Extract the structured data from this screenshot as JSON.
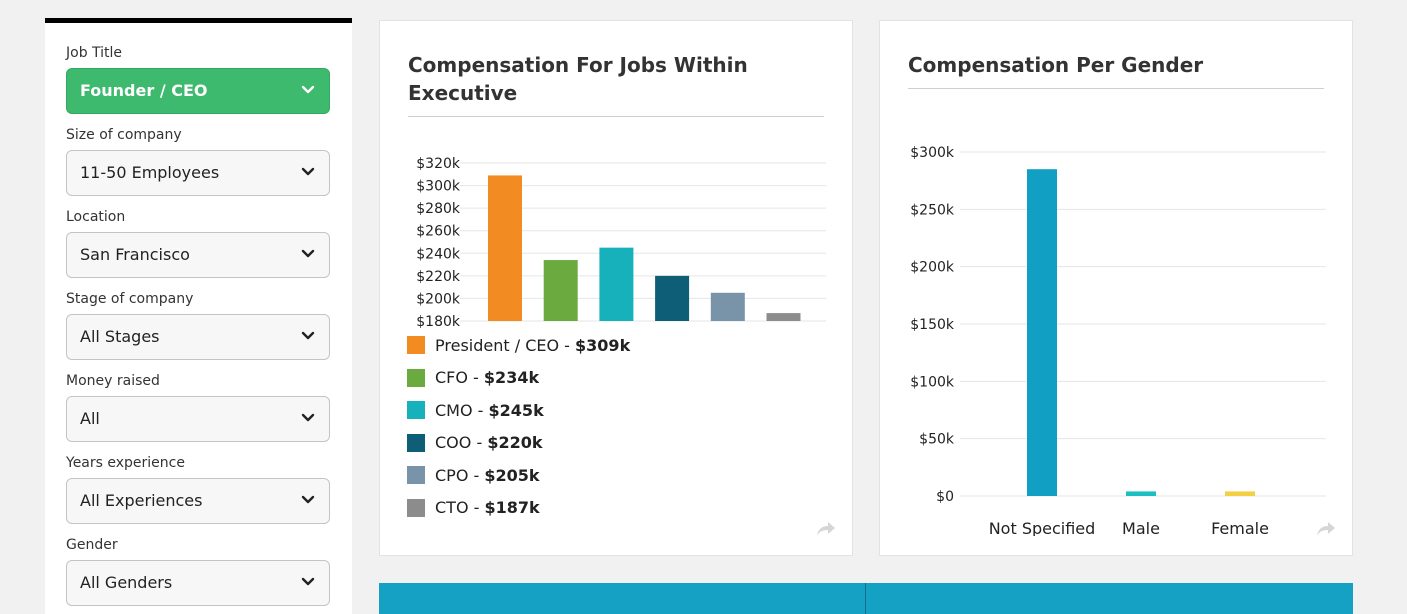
{
  "filters": [
    {
      "label": "Job Title",
      "value": "Founder / CEO",
      "active": true
    },
    {
      "label": "Size of company",
      "value": "11-50 Employees",
      "active": false
    },
    {
      "label": "Location",
      "value": "San Francisco",
      "active": false
    },
    {
      "label": "Stage of company",
      "value": "All Stages",
      "active": false
    },
    {
      "label": "Money raised",
      "value": "All",
      "active": false
    },
    {
      "label": "Years experience",
      "value": "All Experiences",
      "active": false
    },
    {
      "label": "Gender",
      "value": "All Genders",
      "active": false
    }
  ],
  "jobs_card": {
    "title_line1": "Compensation For Jobs Within",
    "title_line2": "Executive",
    "legend": [
      {
        "name": "President / CEO",
        "sep": " - ",
        "amount": "$309k"
      },
      {
        "name": "CFO",
        "sep": " - ",
        "amount": "$234k"
      },
      {
        "name": "CMO",
        "sep": " - ",
        "amount": "$245k"
      },
      {
        "name": "COO",
        "sep": " - ",
        "amount": "$220k"
      },
      {
        "name": "CPO",
        "sep": " - ",
        "amount": "$205k"
      },
      {
        "name": "CTO",
        "sep": " - ",
        "amount": "$187k"
      }
    ]
  },
  "gender_card": {
    "title": "Compensation Per Gender"
  },
  "chart_data": [
    {
      "type": "bar",
      "title": "Compensation For Jobs Within Executive",
      "categories": [
        "President / CEO",
        "CFO",
        "CMO",
        "COO",
        "CPO",
        "CTO"
      ],
      "values": [
        309,
        234,
        245,
        220,
        205,
        187
      ],
      "colors": [
        "#f28c22",
        "#6aaa3f",
        "#16b1bb",
        "#0f5e78",
        "#7993a9",
        "#8c8c8c"
      ],
      "ylim": [
        180,
        320
      ],
      "yticks": [
        180,
        200,
        220,
        240,
        260,
        280,
        300,
        320
      ],
      "ytick_labels": [
        "$180k",
        "$200k",
        "$220k",
        "$240k",
        "$260k",
        "$280k",
        "$300k",
        "$320k"
      ],
      "grid": true,
      "legend": "bottom"
    },
    {
      "type": "bar",
      "title": "Compensation Per Gender",
      "categories": [
        "Not Specified",
        "Male",
        "Female"
      ],
      "values": [
        285,
        4,
        4
      ],
      "colors": [
        "#129fc4",
        "#1bbfc2",
        "#f2cf43"
      ],
      "ylim": [
        0,
        300
      ],
      "yticks": [
        0,
        50,
        100,
        150,
        200,
        250,
        300
      ],
      "ytick_labels": [
        "$0",
        "$50k",
        "$100k",
        "$150k",
        "$200k",
        "$250k",
        "$300k"
      ],
      "grid": true
    }
  ]
}
